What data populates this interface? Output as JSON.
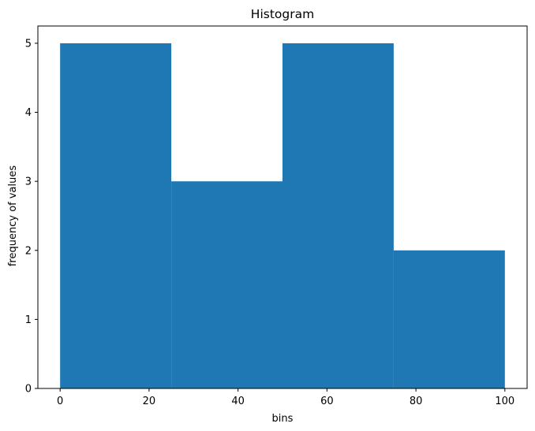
{
  "chart_data": {
    "type": "bar",
    "title": "Histogram",
    "xlabel": "bins",
    "ylabel": "frequency of values",
    "bins": [
      {
        "start": 0,
        "end": 25,
        "count": 5
      },
      {
        "start": 25,
        "end": 50,
        "count": 3
      },
      {
        "start": 50,
        "end": 75,
        "count": 5
      },
      {
        "start": 75,
        "end": 100,
        "count": 2
      }
    ],
    "xlim": [
      -5,
      105
    ],
    "ylim": [
      0,
      5.25
    ],
    "xticks": [
      0,
      20,
      40,
      60,
      80,
      100
    ],
    "yticks": [
      0,
      1,
      2,
      3,
      4,
      5
    ],
    "grid": false,
    "legend": "none",
    "bar_color": "#1f77b4"
  }
}
